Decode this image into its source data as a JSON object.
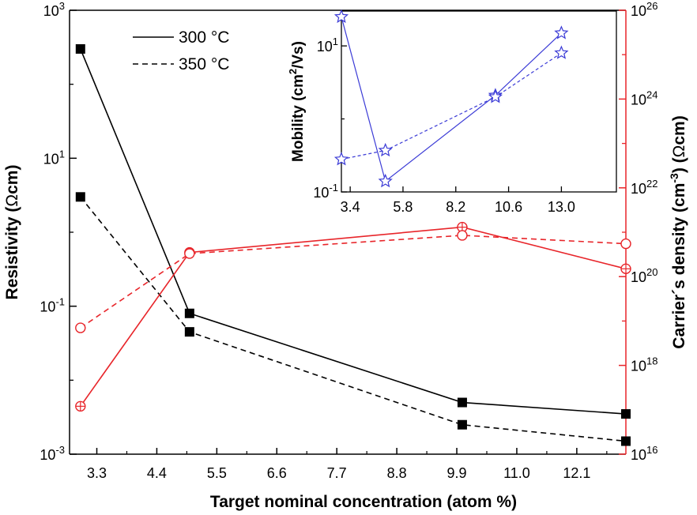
{
  "chart_data": {
    "type": "line",
    "xlabel": "Target nominal concentration (atom %)",
    "x_ticks": [
      "3.3",
      "4.4",
      "5.5",
      "6.6",
      "7.7",
      "8.8",
      "9.9",
      "11.0",
      "12.1"
    ],
    "xlim": [
      2.8,
      13.0
    ],
    "y_left": {
      "label_prefix": "Resistivity (",
      "label_symbol": "Ω",
      "label_suffix": "cm)",
      "scale": "log",
      "lim": [
        0.001,
        1000
      ],
      "ticks": [
        {
          "base": "10",
          "exp": "-3"
        },
        {
          "base": "10",
          "exp": "-1"
        },
        {
          "base": "10",
          "exp": "1"
        },
        {
          "base": "10",
          "exp": "3"
        }
      ],
      "color": "#000000"
    },
    "y_right": {
      "label_prefix": "Carrier´s density (cm",
      "label_sup": "-3",
      "label_mid": ") (",
      "label_symbol": "Ω",
      "label_suffix": "cm)",
      "scale": "log",
      "lim": [
        1e+16,
        1e+26
      ],
      "ticks": [
        {
          "base": "10",
          "exp": "16"
        },
        {
          "base": "10",
          "exp": "18"
        },
        {
          "base": "10",
          "exp": "20"
        },
        {
          "base": "10",
          "exp": "22"
        },
        {
          "base": "10",
          "exp": "24"
        },
        {
          "base": "10",
          "exp": "26"
        }
      ],
      "color": "#e8252a"
    },
    "legend": {
      "placement": "top-left",
      "entries": [
        {
          "label": "300 °C",
          "style": "solid"
        },
        {
          "label": "350 °C",
          "style": "dashed"
        }
      ]
    },
    "series": [
      {
        "axis": "left",
        "style": "solid",
        "marker": "square",
        "color": "#000000",
        "x": [
          3.0,
          5.0,
          10.0,
          13.0
        ],
        "y": [
          300,
          0.08,
          0.005,
          0.0035
        ]
      },
      {
        "axis": "left",
        "style": "dashed",
        "marker": "square",
        "color": "#000000",
        "x": [
          3.0,
          5.0,
          10.0,
          13.0
        ],
        "y": [
          3.0,
          0.045,
          0.0025,
          0.0015
        ]
      },
      {
        "axis": "right",
        "style": "solid",
        "marker": "circle-plus",
        "color": "#e8252a",
        "x": [
          3.0,
          5.0,
          10.0,
          13.0
        ],
        "y": [
          1.2e+17,
          3.5e+20,
          1.3e+21,
          1.5e+20
        ]
      },
      {
        "axis": "right",
        "style": "dashed",
        "marker": "circle",
        "color": "#e8252a",
        "x": [
          3.0,
          5.0,
          10.0,
          13.0
        ],
        "y": [
          7e+18,
          3.3e+20,
          8.5e+20,
          5.5e+20
        ]
      }
    ],
    "inset": {
      "ylabel_prefix": "Mobility (cm",
      "ylabel_sup": "2",
      "ylabel_suffix": "/Vs)",
      "scale": "log",
      "xlim": [
        3.0,
        15.5
      ],
      "ylim": [
        0.1,
        30
      ],
      "x_ticks": [
        "3.4",
        "5.8",
        "8.2",
        "10.6",
        "13.0"
      ],
      "y_ticks": [
        {
          "base": "10",
          "exp": "-1"
        },
        {
          "base": "10",
          "exp": "1"
        }
      ],
      "color": "#3b3bd6",
      "series": [
        {
          "style": "solid",
          "marker": "star",
          "x": [
            3.0,
            5.0,
            10.0,
            13.0
          ],
          "y": [
            25,
            0.14,
            2.1,
            15
          ]
        },
        {
          "style": "dashed",
          "marker": "star",
          "x": [
            3.0,
            5.0,
            10.0,
            13.0
          ],
          "y": [
            0.28,
            0.37,
            2.0,
            8.0
          ]
        }
      ]
    }
  }
}
